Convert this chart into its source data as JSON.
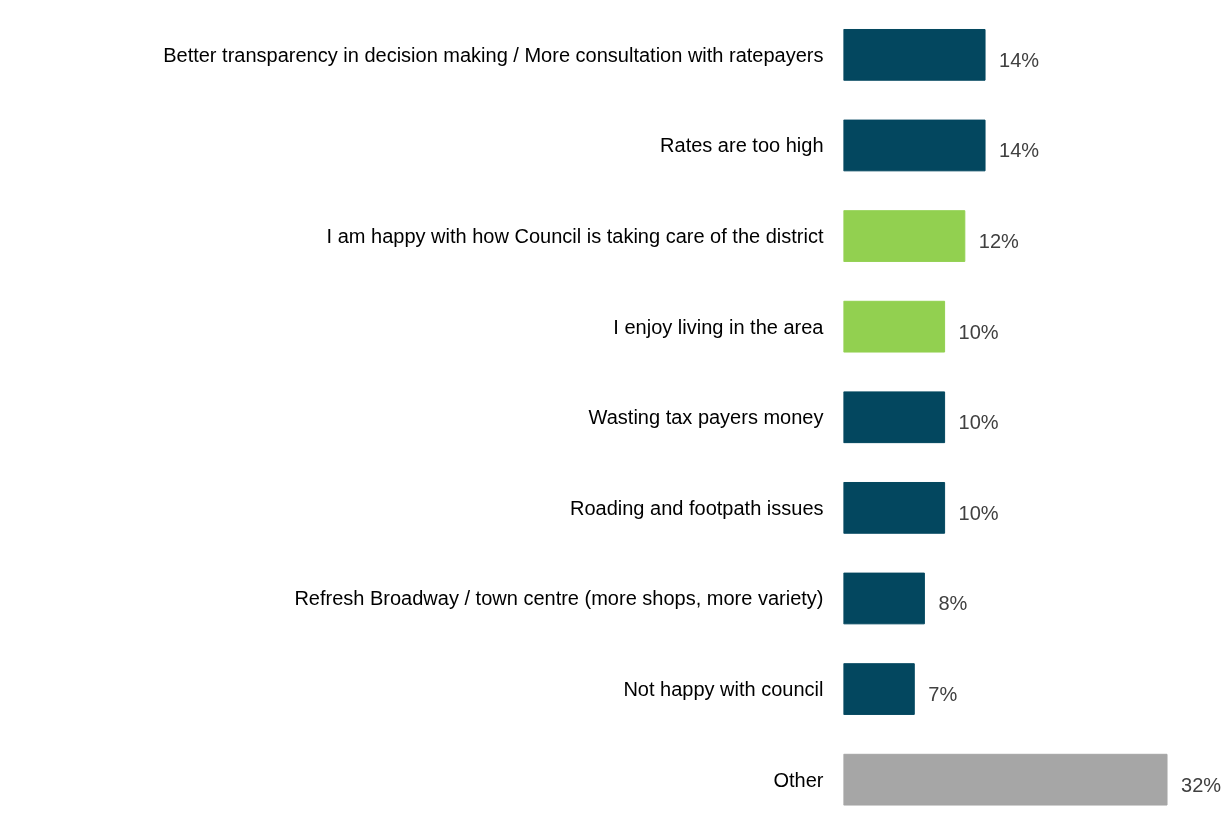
{
  "chart_data": {
    "type": "bar",
    "orientation": "horizontal",
    "data_labels": true,
    "grid": false,
    "categories": [
      "Better transparency in decision making / More consultation with ratepayers",
      "Rates are too high",
      "I am happy with how Council is taking care of the district",
      "I enjoy living in the area",
      "Wasting tax payers money",
      "Roading and footpath issues",
      "Refresh Broadway / town centre (more shops, more variety)",
      "Not happy with council",
      "Other"
    ],
    "values": [
      14,
      14,
      12,
      10,
      10,
      10,
      8,
      7,
      32
    ],
    "value_labels": [
      "14%",
      "14%",
      "12%",
      "10%",
      "10%",
      "10%",
      "8%",
      "7%",
      "32%"
    ],
    "colors": [
      "#03475f",
      "#03475f",
      "#92d050",
      "#92d050",
      "#03475f",
      "#03475f",
      "#03475f",
      "#03475f",
      "#a6a6a6"
    ]
  }
}
